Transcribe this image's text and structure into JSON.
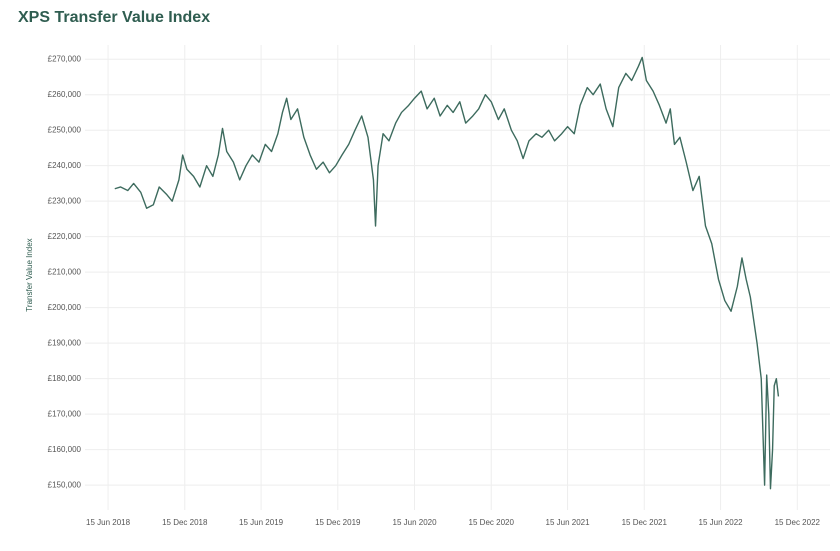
{
  "chart_data": {
    "type": "line",
    "title": "XPS Transfer Value Index",
    "y_label": "Transfer Value Index",
    "xlim": [
      "2018-04-21",
      "2023-03-03"
    ],
    "xticks": [
      {
        "value": "2018-06-15",
        "label": "15 Jun 2018"
      },
      {
        "value": "2018-12-15",
        "label": "15 Dec 2018"
      },
      {
        "value": "2019-06-15",
        "label": "15 Jun 2019"
      },
      {
        "value": "2019-12-15",
        "label": "15 Dec 2019"
      },
      {
        "value": "2020-06-15",
        "label": "15 Jun 2020"
      },
      {
        "value": "2020-12-15",
        "label": "15 Dec 2020"
      },
      {
        "value": "2021-06-15",
        "label": "15 Jun 2021"
      },
      {
        "value": "2021-12-15",
        "label": "15 Dec 2021"
      },
      {
        "value": "2022-06-15",
        "label": "15 Jun 2022"
      },
      {
        "value": "2022-12-15",
        "label": "15 Dec 2022"
      }
    ],
    "ylim": [
      143000,
      274000
    ],
    "yticks": [
      {
        "value": 150000,
        "label": "£150,000"
      },
      {
        "value": 160000,
        "label": "£160,000"
      },
      {
        "value": 170000,
        "label": "£170,000"
      },
      {
        "value": 180000,
        "label": "£180,000"
      },
      {
        "value": 190000,
        "label": "£190,000"
      },
      {
        "value": 200000,
        "label": "£200,000"
      },
      {
        "value": 210000,
        "label": "£210,000"
      },
      {
        "value": 220000,
        "label": "£220,000"
      },
      {
        "value": 230000,
        "label": "£230,000"
      },
      {
        "value": 240000,
        "label": "£240,000"
      },
      {
        "value": 250000,
        "label": "£250,000"
      },
      {
        "value": 260000,
        "label": "£260,000"
      },
      {
        "value": 270000,
        "label": "£270,000"
      }
    ],
    "grid": true,
    "color": "#3d6b5e",
    "x": [
      "2018-07-01",
      "2018-07-15",
      "2018-08-01",
      "2018-08-15",
      "2018-09-01",
      "2018-09-15",
      "2018-10-01",
      "2018-10-15",
      "2018-11-01",
      "2018-11-15",
      "2018-12-01",
      "2018-12-10",
      "2018-12-20",
      "2019-01-05",
      "2019-01-20",
      "2019-02-05",
      "2019-02-20",
      "2019-03-05",
      "2019-03-15",
      "2019-03-25",
      "2019-04-10",
      "2019-04-25",
      "2019-05-10",
      "2019-05-25",
      "2019-06-10",
      "2019-06-25",
      "2019-07-10",
      "2019-07-25",
      "2019-08-05",
      "2019-08-15",
      "2019-08-25",
      "2019-09-10",
      "2019-09-25",
      "2019-10-10",
      "2019-10-25",
      "2019-11-10",
      "2019-11-25",
      "2019-12-10",
      "2019-12-25",
      "2020-01-10",
      "2020-01-25",
      "2020-02-10",
      "2020-02-25",
      "2020-03-09",
      "2020-03-14",
      "2020-03-20",
      "2020-04-01",
      "2020-04-15",
      "2020-05-01",
      "2020-05-15",
      "2020-06-01",
      "2020-06-15",
      "2020-07-01",
      "2020-07-15",
      "2020-08-01",
      "2020-08-15",
      "2020-09-01",
      "2020-09-15",
      "2020-10-01",
      "2020-10-15",
      "2020-11-01",
      "2020-11-15",
      "2020-12-01",
      "2020-12-15",
      "2021-01-01",
      "2021-01-15",
      "2021-02-01",
      "2021-02-15",
      "2021-03-01",
      "2021-03-15",
      "2021-04-01",
      "2021-04-15",
      "2021-05-01",
      "2021-05-15",
      "2021-06-01",
      "2021-06-15",
      "2021-07-01",
      "2021-07-15",
      "2021-08-01",
      "2021-08-15",
      "2021-09-01",
      "2021-09-15",
      "2021-10-01",
      "2021-10-15",
      "2021-11-01",
      "2021-11-15",
      "2021-12-01",
      "2021-12-10",
      "2021-12-20",
      "2022-01-05",
      "2022-01-20",
      "2022-02-05",
      "2022-02-15",
      "2022-02-25",
      "2022-03-10",
      "2022-03-25",
      "2022-04-10",
      "2022-04-25",
      "2022-05-10",
      "2022-05-25",
      "2022-06-10",
      "2022-06-25",
      "2022-07-10",
      "2022-07-25",
      "2022-08-05",
      "2022-08-15",
      "2022-08-25",
      "2022-09-10",
      "2022-09-20",
      "2022-09-28",
      "2022-10-03",
      "2022-10-08",
      "2022-10-12",
      "2022-10-17",
      "2022-10-21",
      "2022-10-26",
      "2022-10-31"
    ],
    "values": [
      233500,
      234000,
      233000,
      235000,
      232500,
      228000,
      229000,
      234000,
      232000,
      230000,
      236000,
      243000,
      239000,
      237000,
      234000,
      240000,
      237000,
      243000,
      250500,
      244000,
      241000,
      236000,
      240000,
      243000,
      241000,
      246000,
      244000,
      249000,
      255000,
      259000,
      253000,
      256000,
      248000,
      243000,
      239000,
      241000,
      238000,
      240000,
      243000,
      246000,
      250000,
      254000,
      248000,
      236000,
      223000,
      240000,
      249000,
      247000,
      252000,
      255000,
      257000,
      259000,
      261000,
      256000,
      259000,
      254000,
      257000,
      255000,
      258000,
      252000,
      254000,
      256000,
      260000,
      258000,
      253000,
      256000,
      250000,
      247000,
      242000,
      247000,
      249000,
      248000,
      250000,
      247000,
      249000,
      251000,
      249000,
      257000,
      262000,
      260000,
      263000,
      256000,
      251000,
      262000,
      266000,
      264000,
      268000,
      270500,
      264000,
      261000,
      257000,
      252000,
      256000,
      246000,
      248000,
      241000,
      233000,
      237000,
      223000,
      218000,
      208000,
      202000,
      199000,
      206000,
      214000,
      208000,
      203000,
      190000,
      180000,
      150000,
      181000,
      170000,
      149000,
      160000,
      178000,
      180000,
      175000
    ]
  }
}
